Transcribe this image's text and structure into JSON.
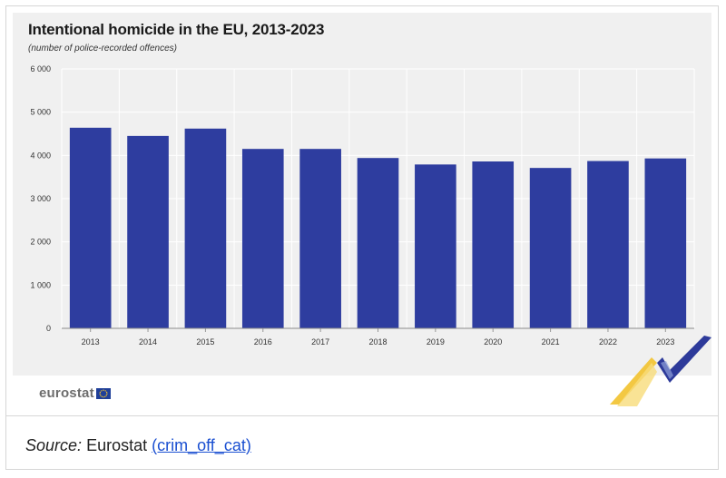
{
  "chart_data": {
    "type": "bar",
    "title": "Intentional homicide in the EU, 2013-2023",
    "subtitle": "(number of police-recorded offences)",
    "categories": [
      "2013",
      "2014",
      "2015",
      "2016",
      "2017",
      "2018",
      "2019",
      "2020",
      "2021",
      "2022",
      "2023"
    ],
    "values": [
      4640,
      4450,
      4620,
      4150,
      4150,
      3940,
      3790,
      3860,
      3710,
      3870,
      3930
    ],
    "ylim": [
      0,
      6000
    ],
    "yticks": [
      0,
      1000,
      2000,
      3000,
      4000,
      5000,
      6000
    ],
    "ytick_labels": [
      "0",
      "1 000",
      "2 000",
      "3 000",
      "4 000",
      "5 000",
      "6 000"
    ],
    "grid": true,
    "bar_color": "#2e3d9f"
  },
  "branding": {
    "logo_text": "eurostat",
    "flag_color": "#1f3f99",
    "deco_colors": [
      "#f2c22e",
      "#2d3a9a"
    ]
  },
  "source": {
    "label": "Source:",
    "publisher": "Eurostat",
    "link_text": "(crim_off_cat)"
  }
}
